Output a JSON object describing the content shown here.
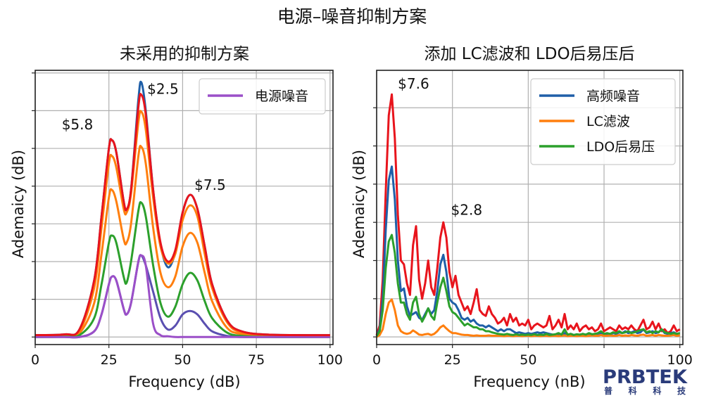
{
  "title": "电源–噪音抑制方案",
  "logo": {
    "text": "PRBTEK",
    "subtext": "普 科 科 技",
    "color": "#2a3b7a"
  },
  "chart_data": [
    {
      "type": "line",
      "title": "未采用的抑制方案",
      "xlabel": "Frequency (dB)",
      "ylabel": "Ademaicy (dB)",
      "xlim": [
        0,
        101
      ],
      "ylim": [
        -0.2,
        7.07
      ],
      "xticks": [
        0,
        25,
        50,
        75,
        100
      ],
      "xtick_labels": [
        "0",
        "25",
        "50",
        "75",
        "100"
      ],
      "yticks": [
        0,
        1,
        2,
        3,
        4,
        5,
        6,
        7
      ],
      "ytick_labels_shown": false,
      "grid": true,
      "legend": {
        "placement": "top-right",
        "entries": [
          {
            "name": "电源噪音",
            "color": "#9b4fc8"
          }
        ]
      },
      "annotations": [
        {
          "text": "$5.8",
          "x": 9,
          "y": 5.5
        },
        {
          "text": "$2.5",
          "x": 38,
          "y": 6.45
        },
        {
          "text": "$7.5",
          "x": 54,
          "y": 3.9
        }
      ],
      "x": [
        0,
        10,
        15,
        20,
        22.5,
        25,
        26,
        27.5,
        30,
        31,
        32.5,
        35,
        36,
        37.5,
        40,
        42.5,
        45,
        47.5,
        50,
        52.5,
        55,
        57.5,
        60,
        65,
        70,
        80,
        100
      ],
      "series": [
        {
          "color": "#1f5fa8",
          "values": [
            0.05,
            0.07,
            0.2,
            1.5,
            3.2,
            5.0,
            5.22,
            4.9,
            3.6,
            3.38,
            3.9,
            6.3,
            6.75,
            6.0,
            3.9,
            2.45,
            1.85,
            2.25,
            3.3,
            3.77,
            3.4,
            2.4,
            1.4,
            0.45,
            0.15,
            0.06,
            0.05
          ]
        },
        {
          "color": "#5a4fb0",
          "values": [
            0.0,
            0.0,
            0.0,
            0.15,
            0.6,
            1.4,
            1.6,
            1.5,
            0.75,
            0.6,
            0.9,
            2.0,
            2.16,
            1.9,
            1.2,
            0.5,
            0.2,
            0.3,
            0.6,
            0.69,
            0.6,
            0.35,
            0.15,
            0.03,
            0.0,
            0.0,
            0.0
          ]
        },
        {
          "color": "#ff7f0e",
          "values": [
            0.03,
            0.05,
            0.15,
            1.3,
            2.9,
            4.6,
            4.8,
            4.5,
            3.4,
            3.3,
            3.8,
            5.7,
            5.97,
            5.5,
            3.7,
            2.4,
            1.95,
            2.2,
            3.1,
            3.49,
            3.2,
            2.2,
            1.3,
            0.4,
            0.12,
            0.04,
            0.03
          ]
        },
        {
          "color": "#ff7f0e",
          "values": [
            0.02,
            0.03,
            0.1,
            0.9,
            2.2,
            3.7,
            3.9,
            3.6,
            2.6,
            2.5,
            3.0,
            4.8,
            5.04,
            4.6,
            2.9,
            1.7,
            1.32,
            1.6,
            2.4,
            2.76,
            2.5,
            1.7,
            0.95,
            0.25,
            0.08,
            0.03,
            0.02
          ]
        },
        {
          "color": "#2ca02c",
          "values": [
            0.0,
            0.01,
            0.05,
            0.5,
            1.4,
            2.5,
            2.69,
            2.5,
            1.6,
            1.44,
            2.0,
            3.35,
            3.56,
            3.2,
            1.9,
            0.9,
            0.54,
            0.8,
            1.4,
            1.7,
            1.5,
            0.95,
            0.5,
            0.12,
            0.03,
            0.0,
            0.0
          ]
        },
        {
          "color": "#9b4fc8",
          "name": "电源噪音",
          "values": [
            0.0,
            0.0,
            0.0,
            0.15,
            0.6,
            1.4,
            1.6,
            1.5,
            0.75,
            0.6,
            0.9,
            2.0,
            2.16,
            1.9,
            0.35,
            0.05,
            0.02,
            0.0,
            0.0,
            0.0,
            0.0,
            0.0,
            0.0,
            0.0,
            0.0,
            0.0,
            0.0
          ]
        },
        {
          "color": "#e8141c",
          "values": [
            0.05,
            0.07,
            0.2,
            1.5,
            3.2,
            5.0,
            5.22,
            4.9,
            3.6,
            3.38,
            3.9,
            6.1,
            6.42,
            5.9,
            3.9,
            2.5,
            2.0,
            2.3,
            3.3,
            3.77,
            3.4,
            2.4,
            1.4,
            0.45,
            0.15,
            0.06,
            0.05
          ]
        }
      ]
    },
    {
      "type": "line",
      "title": "添加 LC滤波和 LDO后易压后",
      "xlabel": "Frequency (nB)",
      "ylabel": "Ademaicy (dB)",
      "xlim": [
        0,
        101
      ],
      "ylim": [
        -0.2,
        6.98
      ],
      "xticks": [
        0,
        25,
        50,
        75,
        100
      ],
      "xtick_labels": [
        "0",
        "25",
        "50",
        "",
        "100"
      ],
      "yticks": [
        0,
        1,
        2,
        3,
        4,
        5,
        6
      ],
      "ytick_labels_shown": false,
      "grid": true,
      "legend": {
        "placement": "top-right",
        "entries": [
          {
            "name": "高频噪音",
            "color": "#1f5fa8"
          },
          {
            "name": "LC滤波",
            "color": "#ff7f0e"
          },
          {
            "name": "LDO后易压",
            "color": "#2ca02c"
          }
        ]
      },
      "annotations": [
        {
          "text": "$7.6",
          "x": 7,
          "y": 6.5
        },
        {
          "text": "$2.8",
          "x": 24.5,
          "y": 3.2
        }
      ],
      "x_start": 0,
      "x_step": 1,
      "series": [
        {
          "color": "#e8141c",
          "values": [
            0.05,
            0.3,
            1.5,
            3.8,
            5.8,
            6.35,
            5.2,
            3.2,
            2.0,
            1.9,
            1.4,
            1.1,
            2.4,
            2.9,
            1.5,
            1.0,
            1.4,
            2.0,
            1.3,
            1.1,
            1.8,
            2.6,
            3.0,
            2.6,
            1.7,
            1.3,
            1.6,
            1.1,
            0.9,
            0.7,
            0.8,
            0.6,
            0.9,
            1.25,
            0.7,
            0.6,
            0.55,
            0.8,
            0.6,
            0.5,
            0.35,
            0.4,
            0.5,
            0.3,
            0.6,
            0.4,
            0.5,
            0.3,
            0.35,
            0.3,
            0.45,
            0.2,
            0.3,
            0.35,
            0.3,
            0.25,
            0.3,
            0.55,
            0.2,
            0.3,
            0.45,
            0.25,
            0.6,
            0.2,
            0.3,
            0.2,
            0.35,
            0.15,
            0.25,
            0.3,
            0.2,
            0.25,
            0.15,
            0.2,
            0.35,
            0.15,
            0.2,
            0.25,
            0.2,
            0.15,
            0.3,
            0.2,
            0.25,
            0.2,
            0.3,
            0.2,
            0.15,
            0.3,
            0.45,
            0.2,
            0.25,
            0.4,
            0.2,
            0.35,
            0.15,
            0.2,
            0.1,
            0.15,
            0.3,
            0.15,
            0.2
          ]
        },
        {
          "color": "#1f5fa8",
          "name": "高频噪音",
          "values": [
            0.02,
            0.2,
            1.0,
            2.8,
            4.1,
            4.46,
            3.6,
            2.0,
            1.2,
            1.27,
            0.8,
            0.55,
            0.6,
            0.65,
            0.5,
            0.45,
            0.6,
            0.75,
            0.6,
            0.7,
            1.2,
            1.9,
            2.15,
            1.7,
            1.0,
            0.9,
            0.85,
            0.7,
            0.5,
            0.45,
            0.5,
            0.4,
            0.45,
            0.35,
            0.3,
            0.3,
            0.25,
            0.3,
            0.25,
            0.2,
            0.15,
            0.2,
            0.15,
            0.2,
            0.2,
            0.15,
            0.1,
            0.12,
            0.1,
            0.08,
            0.1,
            0.08,
            0.1,
            0.12,
            0.1,
            0.12,
            0.1,
            0.08,
            0.06,
            0.05,
            0.07,
            0.05,
            0.1,
            0.05,
            0.08,
            0.05,
            0.06,
            0.05,
            0.08,
            0.05,
            0.07,
            0.05,
            0.08,
            0.06,
            0.1,
            0.05,
            0.08,
            0.06,
            0.1,
            0.08,
            0.12,
            0.1,
            0.15,
            0.1,
            0.12,
            0.15,
            0.1,
            0.12,
            0.2,
            0.1,
            0.12,
            0.15,
            0.1,
            0.12,
            0.2,
            0.1,
            0.08,
            0.1,
            0.12,
            0.08,
            0.1
          ]
        },
        {
          "color": "#ff7f0e",
          "name": "LC滤波",
          "values": [
            0.0,
            0.05,
            0.2,
            0.6,
            0.9,
            0.98,
            0.7,
            0.3,
            0.15,
            0.1,
            0.08,
            0.1,
            0.17,
            0.12,
            0.06,
            0.05,
            0.07,
            0.08,
            0.05,
            0.08,
            0.15,
            0.25,
            0.3,
            0.22,
            0.15,
            0.1,
            0.1,
            0.08,
            0.06,
            0.05,
            0.05,
            0.04,
            0.03,
            0.04,
            0.03,
            0.03,
            0.03,
            0.04,
            0.03,
            0.03,
            0.03,
            0.03,
            0.02,
            0.03,
            0.03,
            0.02,
            0.03,
            0.03,
            0.02,
            0.03,
            0.03,
            0.02,
            0.03,
            0.03,
            0.02,
            0.03,
            0.03,
            0.02,
            0.03,
            0.03,
            0.02,
            0.03,
            0.04,
            0.02,
            0.03,
            0.03,
            0.02,
            0.03,
            0.03,
            0.02,
            0.03,
            0.04,
            0.03,
            0.03,
            0.05,
            0.03,
            0.03,
            0.04,
            0.03,
            0.03,
            0.05,
            0.03,
            0.04,
            0.03,
            0.05,
            0.04,
            0.03,
            0.05,
            0.06,
            0.03,
            0.04,
            0.05,
            0.03,
            0.05,
            0.04,
            0.03,
            0.03,
            0.04,
            0.05,
            0.03,
            0.04
          ]
        },
        {
          "color": "#2ca02c",
          "name": "LDO后易压",
          "values": [
            0.02,
            0.15,
            0.7,
            1.8,
            2.5,
            2.67,
            2.2,
            1.4,
            0.9,
            0.9,
            0.6,
            0.45,
            0.9,
            1.05,
            0.6,
            0.4,
            0.55,
            0.75,
            0.55,
            0.45,
            0.9,
            1.3,
            1.55,
            1.2,
            0.8,
            0.65,
            0.6,
            0.5,
            0.4,
            0.3,
            0.35,
            0.3,
            0.25,
            0.25,
            0.2,
            0.2,
            0.15,
            0.15,
            0.12,
            0.1,
            0.08,
            0.07,
            0.06,
            0.08,
            0.06,
            0.05,
            0.07,
            0.05,
            0.06,
            0.05,
            0.06,
            0.05,
            0.07,
            0.05,
            0.06,
            0.05,
            0.08,
            0.05,
            0.06,
            0.07,
            0.1,
            0.06,
            0.2,
            0.06,
            0.08,
            0.05,
            0.07,
            0.06,
            0.08,
            0.06,
            0.1,
            0.07,
            0.08,
            0.1,
            0.15,
            0.08,
            0.1,
            0.08,
            0.12,
            0.1,
            0.15,
            0.1,
            0.12,
            0.15,
            0.1,
            0.12,
            0.15,
            0.18,
            0.2,
            0.12,
            0.15,
            0.1,
            0.15,
            0.12,
            0.2,
            0.12,
            0.1,
            0.08,
            0.1,
            0.08,
            0.1
          ]
        }
      ]
    }
  ]
}
